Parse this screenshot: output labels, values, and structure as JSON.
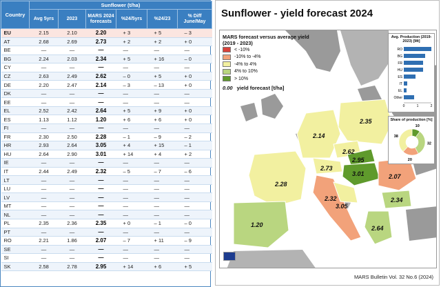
{
  "table": {
    "crop_header": "Sunflower (t/ha)",
    "country_header": "Country",
    "columns": [
      "Avg 5yrs",
      "2023",
      "MARS 2024 forecasts",
      "%24/5yrs",
      "%24/23",
      "% Diff June/May"
    ],
    "rows": [
      {
        "country": "EU",
        "avg5": "2.15",
        "y2023": "2.10",
        "forecast": "2.20",
        "pct5": "+ 3",
        "pct23": "+ 5",
        "diff": "– 3"
      },
      {
        "country": "AT",
        "avg5": "2.68",
        "y2023": "2.69",
        "forecast": "2.73",
        "pct5": "+ 2",
        "pct23": "+ 2",
        "diff": "+ 0"
      },
      {
        "country": "BE",
        "avg5": "—",
        "y2023": "—",
        "forecast": "—",
        "pct5": "—",
        "pct23": "—",
        "diff": "—"
      },
      {
        "country": "BG",
        "avg5": "2.24",
        "y2023": "2.03",
        "forecast": "2.34",
        "pct5": "+ 5",
        "pct23": "+ 16",
        "diff": "– 0"
      },
      {
        "country": "CY",
        "avg5": "—",
        "y2023": "—",
        "forecast": "—",
        "pct5": "—",
        "pct23": "—",
        "diff": "—"
      },
      {
        "country": "CZ",
        "avg5": "2.63",
        "y2023": "2.49",
        "forecast": "2.62",
        "pct5": "– 0",
        "pct23": "+ 5",
        "diff": "+ 0"
      },
      {
        "country": "DE",
        "avg5": "2.20",
        "y2023": "2.47",
        "forecast": "2.14",
        "pct5": "– 3",
        "pct23": "– 13",
        "diff": "+ 0"
      },
      {
        "country": "DK",
        "avg5": "—",
        "y2023": "—",
        "forecast": "—",
        "pct5": "—",
        "pct23": "—",
        "diff": "—"
      },
      {
        "country": "EE",
        "avg5": "—",
        "y2023": "—",
        "forecast": "—",
        "pct5": "—",
        "pct23": "—",
        "diff": "—"
      },
      {
        "country": "EL",
        "avg5": "2.52",
        "y2023": "2.42",
        "forecast": "2.64",
        "pct5": "+ 5",
        "pct23": "+ 9",
        "diff": "+ 0"
      },
      {
        "country": "ES",
        "avg5": "1.13",
        "y2023": "1.12",
        "forecast": "1.20",
        "pct5": "+ 6",
        "pct23": "+ 6",
        "diff": "+ 0"
      },
      {
        "country": "FI",
        "avg5": "—",
        "y2023": "—",
        "forecast": "—",
        "pct5": "—",
        "pct23": "—",
        "diff": "—"
      },
      {
        "country": "FR",
        "avg5": "2.30",
        "y2023": "2.50",
        "forecast": "2.28",
        "pct5": "– 1",
        "pct23": "– 9",
        "diff": "– 2"
      },
      {
        "country": "HR",
        "avg5": "2.93",
        "y2023": "2.64",
        "forecast": "3.05",
        "pct5": "+ 4",
        "pct23": "+ 15",
        "diff": "– 1"
      },
      {
        "country": "HU",
        "avg5": "2.64",
        "y2023": "2.90",
        "forecast": "3.01",
        "pct5": "+ 14",
        "pct23": "+ 4",
        "diff": "+ 2"
      },
      {
        "country": "IE",
        "avg5": "—",
        "y2023": "—",
        "forecast": "—",
        "pct5": "—",
        "pct23": "—",
        "diff": "—"
      },
      {
        "country": "IT",
        "avg5": "2.44",
        "y2023": "2.49",
        "forecast": "2.32",
        "pct5": "– 5",
        "pct23": "– 7",
        "diff": "– 6"
      },
      {
        "country": "LT",
        "avg5": "—",
        "y2023": "—",
        "forecast": "—",
        "pct5": "—",
        "pct23": "—",
        "diff": "—"
      },
      {
        "country": "LU",
        "avg5": "—",
        "y2023": "—",
        "forecast": "—",
        "pct5": "—",
        "pct23": "—",
        "diff": "—"
      },
      {
        "country": "LV",
        "avg5": "—",
        "y2023": "—",
        "forecast": "—",
        "pct5": "—",
        "pct23": "—",
        "diff": "—"
      },
      {
        "country": "MT",
        "avg5": "—",
        "y2023": "—",
        "forecast": "—",
        "pct5": "—",
        "pct23": "—",
        "diff": "—"
      },
      {
        "country": "NL",
        "avg5": "—",
        "y2023": "—",
        "forecast": "—",
        "pct5": "—",
        "pct23": "—",
        "diff": "—"
      },
      {
        "country": "PL",
        "avg5": "2.35",
        "y2023": "2.36",
        "forecast": "2.35",
        "pct5": "+ 0",
        "pct23": "– 1",
        "diff": "– 0"
      },
      {
        "country": "PT",
        "avg5": "—",
        "y2023": "—",
        "forecast": "—",
        "pct5": "—",
        "pct23": "—",
        "diff": "—"
      },
      {
        "country": "RO",
        "avg5": "2.21",
        "y2023": "1.86",
        "forecast": "2.07",
        "pct5": "– 7",
        "pct23": "+ 11",
        "diff": "– 9"
      },
      {
        "country": "SE",
        "avg5": "—",
        "y2023": "—",
        "forecast": "—",
        "pct5": "—",
        "pct23": "—",
        "diff": "—"
      },
      {
        "country": "SI",
        "avg5": "—",
        "y2023": "—",
        "forecast": "—",
        "pct5": "—",
        "pct23": "—",
        "diff": "—"
      },
      {
        "country": "SK",
        "avg5": "2.58",
        "y2023": "2.78",
        "forecast": "2.95",
        "pct5": "+ 14",
        "pct23": "+ 6",
        "diff": "+ 5"
      }
    ]
  },
  "map": {
    "title": "Sunflower - yield forecast 2024",
    "legend_title_1": "MARS forecast versus average yield",
    "legend_title_2": "(2019 - 2023)",
    "legend_items": [
      {
        "label": "< -10%",
        "color": "#d9423a"
      },
      {
        "label": "-10% to -4%",
        "color": "#f2a27a"
      },
      {
        "label": "-4% to 4%",
        "color": "#f2f0a0"
      },
      {
        "label": "4% to 10%",
        "color": "#b9d680"
      },
      {
        "label": "> 10%",
        "color": "#5f9a2c"
      }
    ],
    "yield_sample": "0.00",
    "yield_label": "yield forecast [t/ha]",
    "footer": "MARS Bulletin Vol. 32 No.6 (2024)",
    "country_values": [
      {
        "value": "2.14",
        "color": "#f2f0a0"
      },
      {
        "value": "2.35",
        "color": "#f2f0a0"
      },
      {
        "value": "2.62",
        "color": "#f2f0a0"
      },
      {
        "value": "2.28",
        "color": "#f2f0a0"
      },
      {
        "value": "2.73",
        "color": "#f2f0a0"
      },
      {
        "value": "2.95",
        "color": "#5f9a2c"
      },
      {
        "value": "3.01",
        "color": "#5f9a2c"
      },
      {
        "value": "2.07",
        "color": "#f2a27a"
      },
      {
        "value": "2.32",
        "color": "#f2a27a"
      },
      {
        "value": "3.05",
        "color": "#f2f0a0"
      },
      {
        "value": "2.34",
        "color": "#b9d680"
      },
      {
        "value": "1.20",
        "color": "#b9d680"
      },
      {
        "value": "2.64",
        "color": "#b9d680"
      }
    ]
  },
  "chart_data": [
    {
      "type": "bar",
      "title": "Avg. Production (2019-2023) [Mt]",
      "categories": [
        "RO",
        "BG",
        "FR",
        "HU",
        "ES",
        "IT",
        "EL",
        "Other"
      ],
      "values": [
        2.0,
        1.55,
        1.4,
        1.4,
        0.85,
        0.25,
        0.2,
        0.75
      ],
      "xticks": [
        "0",
        "1",
        "2"
      ],
      "xlim": [
        0,
        2
      ]
    },
    {
      "type": "pie",
      "title": "Share of production [%]",
      "labels": [
        "10",
        "32",
        "20",
        "38"
      ],
      "values": [
        10,
        32,
        20,
        38
      ],
      "colors": [
        "#5f9a2c",
        "#b9d680",
        "#f2a27a",
        "#f2f0a0"
      ]
    }
  ]
}
